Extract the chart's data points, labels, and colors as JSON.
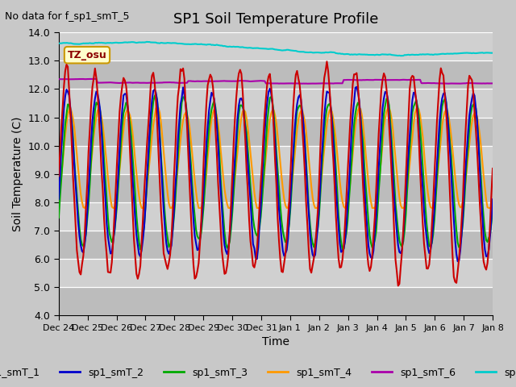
{
  "title": "SP1 Soil Temperature Profile",
  "no_data_text": "No data for f_sp1_smT_5",
  "xlabel": "Time",
  "ylabel": "Soil Temperature (C)",
  "ylim": [
    4.0,
    14.0
  ],
  "yticks": [
    4.0,
    5.0,
    6.0,
    7.0,
    8.0,
    9.0,
    10.0,
    11.0,
    12.0,
    13.0,
    14.0
  ],
  "tz_label": "TZ_osu",
  "fig_bg_color": "#c8c8c8",
  "ax_bg_color": "#d0d0d0",
  "series_colors": {
    "sp1_smT_1": "#cc0000",
    "sp1_smT_2": "#0000cc",
    "sp1_smT_3": "#00aa00",
    "sp1_smT_4": "#ff9900",
    "sp1_smT_6": "#aa00aa",
    "sp1_smT_7": "#00cccc"
  },
  "x_tick_labels": [
    "Dec 24",
    "Dec 25",
    "Dec 26",
    "Dec 27",
    "Dec 28",
    "Dec 29",
    "Dec 30",
    "Dec 31",
    "Jan 1",
    "Jan 2",
    "Jan 3",
    "Jan 4",
    "Jan 5",
    "Jan 6",
    "Jan 7",
    "Jan 8"
  ],
  "n_points": 336,
  "n_days": 15
}
